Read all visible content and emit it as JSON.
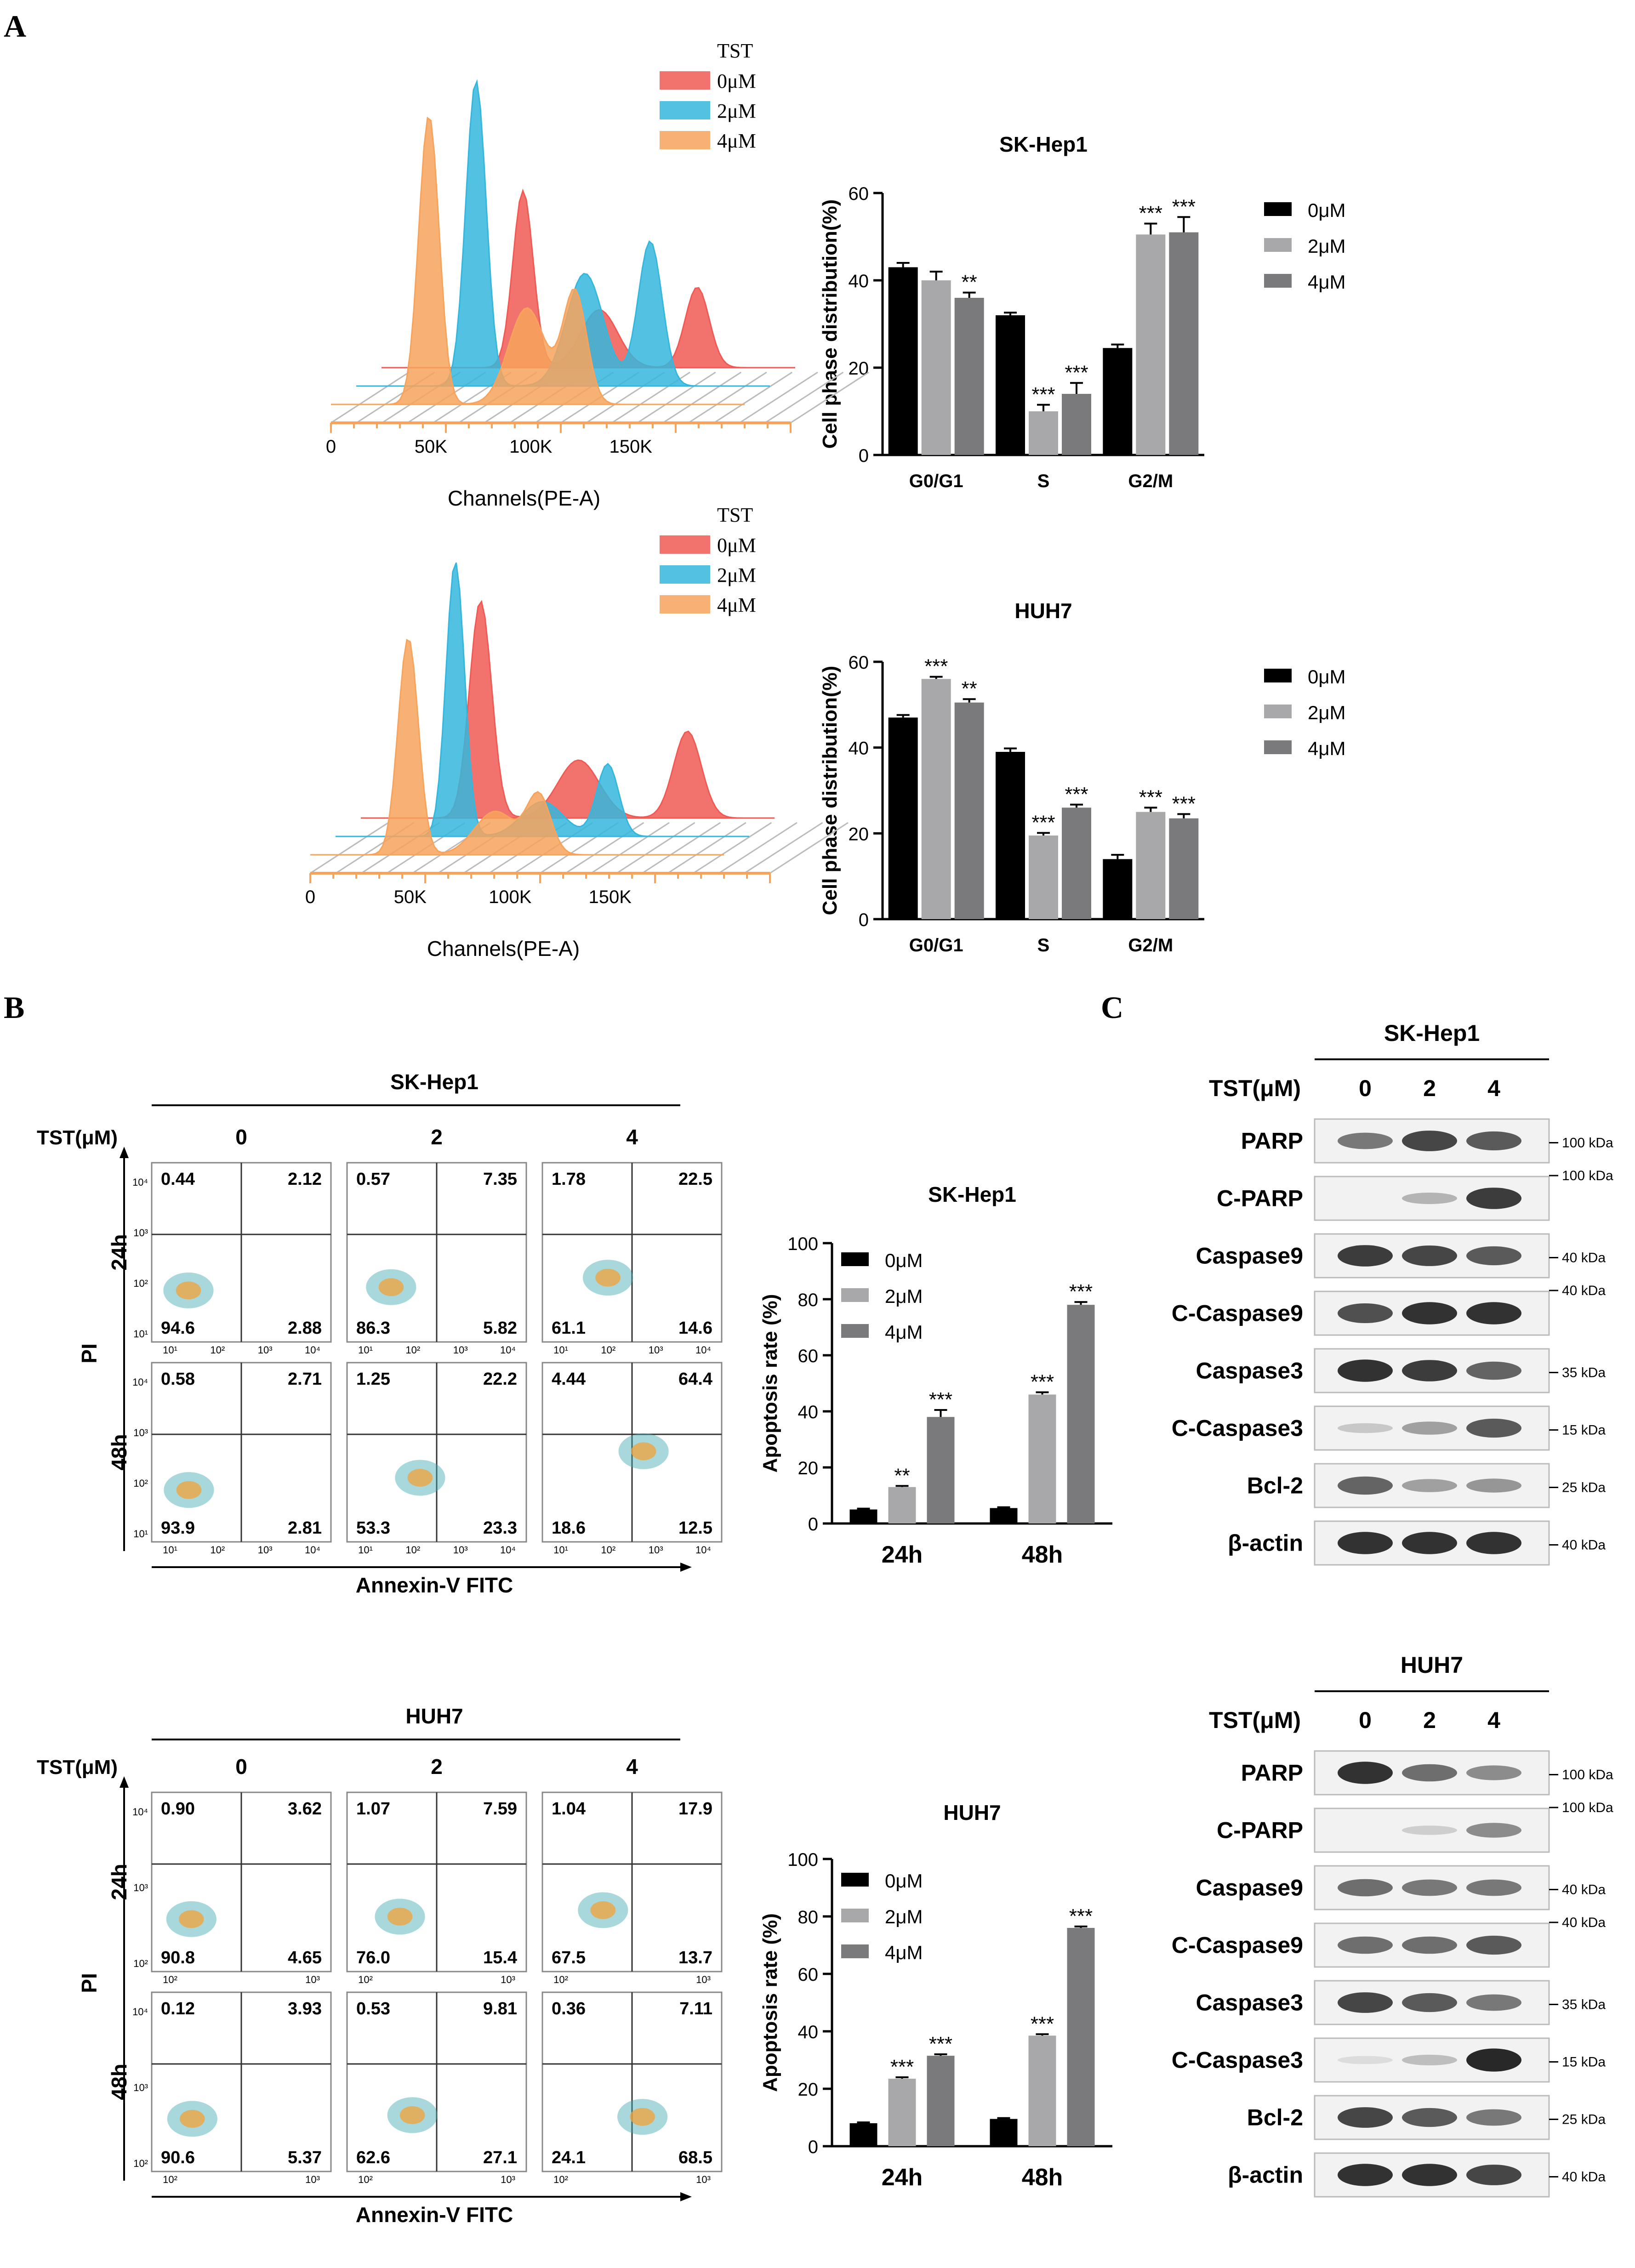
{
  "panel_labels": {
    "A": "A",
    "B": "B",
    "C": "C"
  },
  "colors": {
    "c0": "#000000",
    "c2": "#a8a8aa",
    "c4": "#7a7a7c",
    "red": "#f05a54",
    "cyan": "#35b7dd",
    "orange": "#f7a35c"
  },
  "histograms": [
    {
      "id": "hist-skhep1",
      "legend_title": "TST",
      "legend": [
        "0μM",
        "2μM",
        "4μM"
      ],
      "xlabel": "Channels(PE-A)",
      "ticks": [
        "0",
        "50K",
        "100K",
        "150K"
      ]
    },
    {
      "id": "hist-huh7",
      "legend_title": "TST",
      "legend": [
        "0μM",
        "2μM",
        "4μM"
      ],
      "xlabel": "Channels(PE-A)",
      "ticks": [
        "0",
        "50K",
        "100K",
        "150K"
      ]
    }
  ],
  "chart_data": [
    {
      "type": "bar",
      "id": "cc-skhep1",
      "title": "SK-Hep1",
      "ylabel": "Cell phase distribution(%)",
      "ylim": [
        0,
        60
      ],
      "yticks": [
        "0",
        "20",
        "40",
        "60"
      ],
      "categories": [
        "G0/G1",
        "S",
        "G2/M"
      ],
      "series": [
        {
          "name": "0μM",
          "values": [
            43,
            32,
            24.5
          ],
          "err": [
            1,
            0.6,
            0.8
          ],
          "sig": [
            "",
            "",
            ""
          ]
        },
        {
          "name": "2μM",
          "values": [
            40,
            10,
            50.5
          ],
          "err": [
            2,
            1.5,
            2.5
          ],
          "sig": [
            "",
            "***",
            "***"
          ]
        },
        {
          "name": "4μM",
          "values": [
            36,
            14,
            51
          ],
          "err": [
            1.2,
            2.5,
            3.5
          ],
          "sig": [
            "**",
            "***",
            "***"
          ]
        }
      ]
    },
    {
      "type": "bar",
      "id": "cc-huh7",
      "title": "HUH7",
      "ylabel": "Cell phase distribution(%)",
      "ylim": [
        0,
        60
      ],
      "yticks": [
        "0",
        "20",
        "40",
        "60"
      ],
      "categories": [
        "G0/G1",
        "S",
        "G2/M"
      ],
      "series": [
        {
          "name": "0μM",
          "values": [
            47,
            39,
            14
          ],
          "err": [
            0.6,
            0.8,
            1
          ],
          "sig": [
            "",
            "",
            ""
          ]
        },
        {
          "name": "2μM",
          "values": [
            56,
            19.5,
            25
          ],
          "err": [
            0.5,
            0.6,
            1
          ],
          "sig": [
            "***",
            "***",
            "***"
          ]
        },
        {
          "name": "4μM",
          "values": [
            50.5,
            26,
            23.5
          ],
          "err": [
            0.8,
            0.7,
            1
          ],
          "sig": [
            "**",
            "***",
            "***"
          ]
        }
      ]
    },
    {
      "type": "bar",
      "id": "ap-skhep1",
      "title": "SK-Hep1",
      "ylabel": "Apoptosis rate (%)",
      "ylim": [
        0,
        100
      ],
      "yticks": [
        "0",
        "20",
        "40",
        "60",
        "80",
        "100"
      ],
      "categories": [
        "24h",
        "48h"
      ],
      "series": [
        {
          "name": "0μM",
          "values": [
            5,
            5.5
          ],
          "err": [
            0.3,
            0.3
          ],
          "sig": [
            "",
            ""
          ]
        },
        {
          "name": "2μM",
          "values": [
            13,
            46
          ],
          "err": [
            0.4,
            0.8
          ],
          "sig": [
            "**",
            "***"
          ]
        },
        {
          "name": "4μM",
          "values": [
            38,
            78
          ],
          "err": [
            2.5,
            1
          ],
          "sig": [
            "***",
            "***"
          ]
        }
      ]
    },
    {
      "type": "bar",
      "id": "ap-huh7",
      "title": "HUH7",
      "ylabel": "Apoptosis rate (%)",
      "ylim": [
        0,
        100
      ],
      "yticks": [
        "0",
        "20",
        "40",
        "60",
        "80",
        "100"
      ],
      "categories": [
        "24h",
        "48h"
      ],
      "series": [
        {
          "name": "0μM",
          "values": [
            8,
            9.5
          ],
          "err": [
            0.3,
            0.3
          ],
          "sig": [
            "",
            ""
          ]
        },
        {
          "name": "2μM",
          "values": [
            23.5,
            38.5
          ],
          "err": [
            0.5,
            0.5
          ],
          "sig": [
            "***",
            "***"
          ]
        },
        {
          "name": "4μM",
          "values": [
            31.5,
            76
          ],
          "err": [
            0.5,
            0.5
          ],
          "sig": [
            "***",
            "***"
          ]
        }
      ]
    }
  ],
  "flow": [
    {
      "id": "flow-skhep1",
      "title": "SK-Hep1",
      "tst_label": "TST(μM)",
      "cols": [
        "0",
        "2",
        "4"
      ],
      "rows": [
        "24h",
        "48h"
      ],
      "ylabel": "PI",
      "xlabel": "Annexin-V FITC",
      "tick_y": [
        "10⁴",
        "10³",
        "10²",
        "10¹"
      ],
      "tick_x": [
        "10¹",
        "10²",
        "10³",
        "10⁴"
      ],
      "quadrants": [
        [
          [
            "0.44",
            "2.12",
            "94.6",
            "2.88"
          ],
          [
            "0.57",
            "7.35",
            "86.3",
            "5.82"
          ],
          [
            "1.78",
            "22.5",
            "61.1",
            "14.6"
          ]
        ],
        [
          [
            "0.58",
            "2.71",
            "93.9",
            "2.81"
          ],
          [
            "1.25",
            "22.2",
            "53.3",
            "23.3"
          ],
          [
            "4.44",
            "64.4",
            "18.6",
            "12.5"
          ]
        ]
      ]
    },
    {
      "id": "flow-huh7",
      "title": "HUH7",
      "tst_label": "TST(μM)",
      "cols": [
        "0",
        "2",
        "4"
      ],
      "rows": [
        "24h",
        "48h"
      ],
      "ylabel": "PI",
      "xlabel": "Annexin-V FITC",
      "tick_y": [
        "10⁴",
        "10³",
        "10²"
      ],
      "tick_x": [
        "10²",
        "10³"
      ],
      "quadrants": [
        [
          [
            "0.90",
            "3.62",
            "90.8",
            "4.65"
          ],
          [
            "1.07",
            "7.59",
            "76.0",
            "15.4"
          ],
          [
            "1.04",
            "17.9",
            "67.5",
            "13.7"
          ]
        ],
        [
          [
            "0.12",
            "3.93",
            "90.6",
            "5.37"
          ],
          [
            "0.53",
            "9.81",
            "62.6",
            "27.1"
          ],
          [
            "0.36",
            "7.11",
            "24.1",
            "68.5"
          ]
        ]
      ]
    }
  ],
  "blots": [
    {
      "id": "wb-skhep1",
      "title": "SK-Hep1",
      "tst_label": "TST(μM)",
      "lanes": [
        "0",
        "2",
        "4"
      ],
      "rows": [
        {
          "label": "PARP",
          "kda": "100 kDa",
          "intensity": [
            0.55,
            0.8,
            0.7
          ]
        },
        {
          "label": "C-PARP",
          "kda": "100 kDa",
          "intensity": [
            0,
            0.25,
            0.85
          ]
        },
        {
          "label": "Caspase9",
          "kda": "40 kDa",
          "intensity": [
            0.85,
            0.8,
            0.7
          ]
        },
        {
          "label": "C-Caspase9",
          "kda": "40 kDa",
          "intensity": [
            0.75,
            0.9,
            0.9
          ]
        },
        {
          "label": "Caspase3",
          "kda": "35 kDa",
          "intensity": [
            0.9,
            0.85,
            0.65
          ]
        },
        {
          "label": "C-Caspase3",
          "kda": "15 kDa",
          "intensity": [
            0.15,
            0.35,
            0.7
          ]
        },
        {
          "label": "Bcl-2",
          "kda": "25 kDa",
          "intensity": [
            0.65,
            0.35,
            0.4
          ]
        },
        {
          "label": "β-actin",
          "kda": "40 kDa",
          "intensity": [
            0.9,
            0.9,
            0.9
          ]
        }
      ]
    },
    {
      "id": "wb-huh7",
      "title": "HUH7",
      "tst_label": "TST(μM)",
      "lanes": [
        "0",
        "2",
        "4"
      ],
      "rows": [
        {
          "label": "PARP",
          "kda": "100 kDa",
          "intensity": [
            0.9,
            0.6,
            0.45
          ]
        },
        {
          "label": "C-PARP",
          "kda": "100 kDa",
          "intensity": [
            0,
            0.12,
            0.45
          ]
        },
        {
          "label": "Caspase9",
          "kda": "40 kDa",
          "intensity": [
            0.6,
            0.55,
            0.55
          ]
        },
        {
          "label": "C-Caspase9",
          "kda": "40 kDa",
          "intensity": [
            0.6,
            0.6,
            0.7
          ]
        },
        {
          "label": "Caspase3",
          "kda": "35 kDa",
          "intensity": [
            0.8,
            0.7,
            0.55
          ]
        },
        {
          "label": "C-Caspase3",
          "kda": "15 kDa",
          "intensity": [
            0.05,
            0.2,
            0.95
          ]
        },
        {
          "label": "Bcl-2",
          "kda": "25 kDa",
          "intensity": [
            0.8,
            0.7,
            0.55
          ]
        },
        {
          "label": "β-actin",
          "kda": "40 kDa",
          "intensity": [
            0.9,
            0.9,
            0.8
          ]
        }
      ]
    }
  ]
}
